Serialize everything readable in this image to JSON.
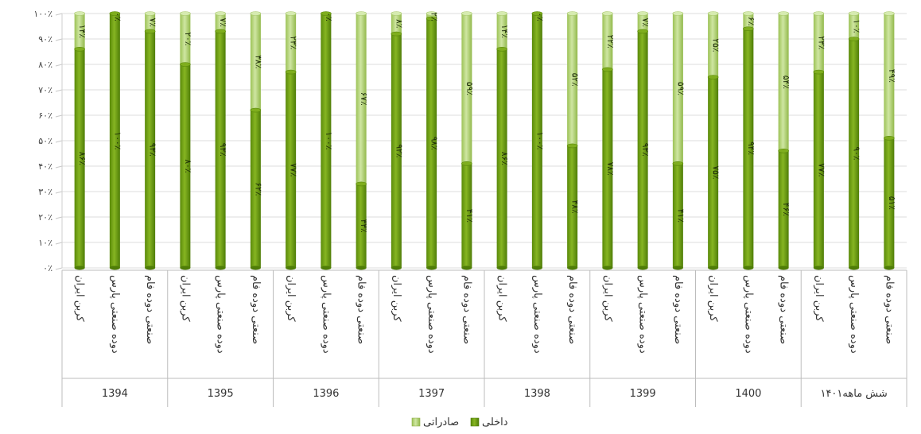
{
  "chart_data": {
    "type": "bar",
    "stacked": true,
    "percent": true,
    "orientation": "vertical",
    "ylim": [
      0,
      100
    ],
    "yticks": [
      "۰٪",
      "۱۰٪",
      "۲۰٪",
      "۳۰٪",
      "۴۰٪",
      "۵۰٪",
      "۶۰٪",
      "۷۰٪",
      "۸۰٪",
      "۹۰٪",
      "۱۰۰٪"
    ],
    "grid": true,
    "legend_position": "bottom",
    "subcategories": [
      "کربن ایران",
      "دوده صنعتی پارس",
      "صنعتی دوده فام"
    ],
    "groups": [
      {
        "name": "1394",
        "domestic": [
          86,
          100,
          93
        ],
        "export": [
          14,
          0,
          7
        ],
        "domestic_labels": [
          "۸۶٪",
          "۱۰۰٪",
          "۹۳٪"
        ],
        "export_labels": [
          "۱۴٪",
          "۰٪",
          "۷٪"
        ]
      },
      {
        "name": "1395",
        "domestic": [
          80,
          93,
          62
        ],
        "export": [
          20,
          7,
          38
        ],
        "domestic_labels": [
          "۸۰٪",
          "۹۳٪",
          "۶۲٪"
        ],
        "export_labels": [
          "۲۰٪",
          "۷٪",
          "۳۸٪"
        ]
      },
      {
        "name": "1396",
        "domestic": [
          77,
          100,
          33
        ],
        "export": [
          23,
          0,
          67
        ],
        "domestic_labels": [
          "۷۷٪",
          "۱۰۰٪",
          "۳۳٪"
        ],
        "export_labels": [
          "۲۳٪",
          "۰٪",
          "۶۷٪"
        ]
      },
      {
        "name": "1397",
        "domestic": [
          92,
          98,
          41
        ],
        "export": [
          8,
          2,
          59
        ],
        "domestic_labels": [
          "۹۲٪",
          "۹۸٪",
          "۴۱٪"
        ],
        "export_labels": [
          "۸٪",
          "۲٪",
          "۵۹٪"
        ]
      },
      {
        "name": "1398",
        "domestic": [
          86,
          100,
          48
        ],
        "export": [
          14,
          0,
          52
        ],
        "domestic_labels": [
          "۸۶٪",
          "۱۰۰٪",
          "۴۸٪"
        ],
        "export_labels": [
          "۱۴٪",
          "۰٪",
          "۵۲٪"
        ]
      },
      {
        "name": "1399",
        "domestic": [
          78,
          93,
          41
        ],
        "export": [
          22,
          7,
          59
        ],
        "domestic_labels": [
          "۷۸٪",
          "۹۳٪",
          "۴۱٪"
        ],
        "export_labels": [
          "۲۲٪",
          "۷٪",
          "۵۹٪"
        ]
      },
      {
        "name": "1400",
        "domestic": [
          75,
          94,
          46
        ],
        "export": [
          25,
          6,
          54
        ],
        "domestic_labels": [
          "۷۵٪",
          "۹۴٪",
          "۴۶٪"
        ],
        "export_labels": [
          "۲۵٪",
          "۶٪",
          "۵۴٪"
        ]
      },
      {
        "name": "شش ماهه۱۴۰۱",
        "domestic": [
          77,
          90,
          51
        ],
        "export": [
          23,
          10,
          49
        ],
        "domestic_labels": [
          "۷۷٪",
          "۹۰٪",
          "۵۱٪"
        ],
        "export_labels": [
          "۲۳٪",
          "۱۰٪",
          "۴۹٪"
        ]
      }
    ],
    "series": [
      {
        "name": "داخلی",
        "key": "domestic",
        "color": "#6a9a12"
      },
      {
        "name": "صادراتی",
        "key": "export",
        "color": "#b9d77c"
      }
    ]
  }
}
